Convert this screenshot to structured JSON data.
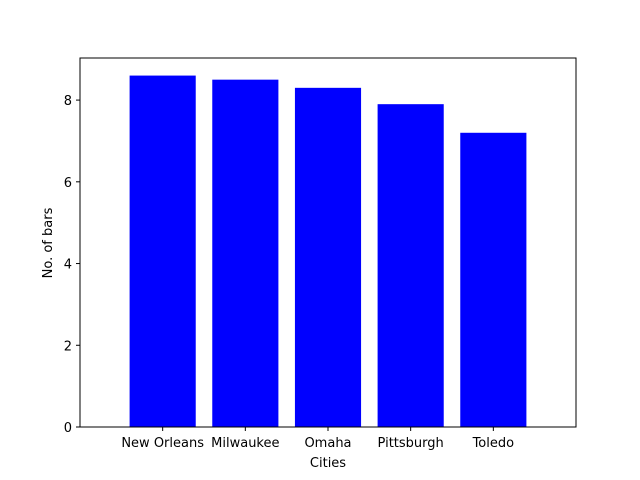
{
  "chart_data": {
    "type": "bar",
    "title": "",
    "xlabel": "Cities",
    "ylabel": "No. of bars",
    "categories": [
      "New Orleans",
      "Milwaukee",
      "Omaha",
      "Pittsburgh",
      "Toledo"
    ],
    "values": [
      8.6,
      8.5,
      8.3,
      7.9,
      7.2
    ],
    "ylim": [
      0,
      9.03
    ],
    "yticks": [
      0,
      2,
      4,
      6,
      8
    ],
    "ytick_labels": [
      "0",
      "2",
      "4",
      "6",
      "8"
    ],
    "bar_color": "#0000ff",
    "grid": false,
    "legend": "none"
  }
}
